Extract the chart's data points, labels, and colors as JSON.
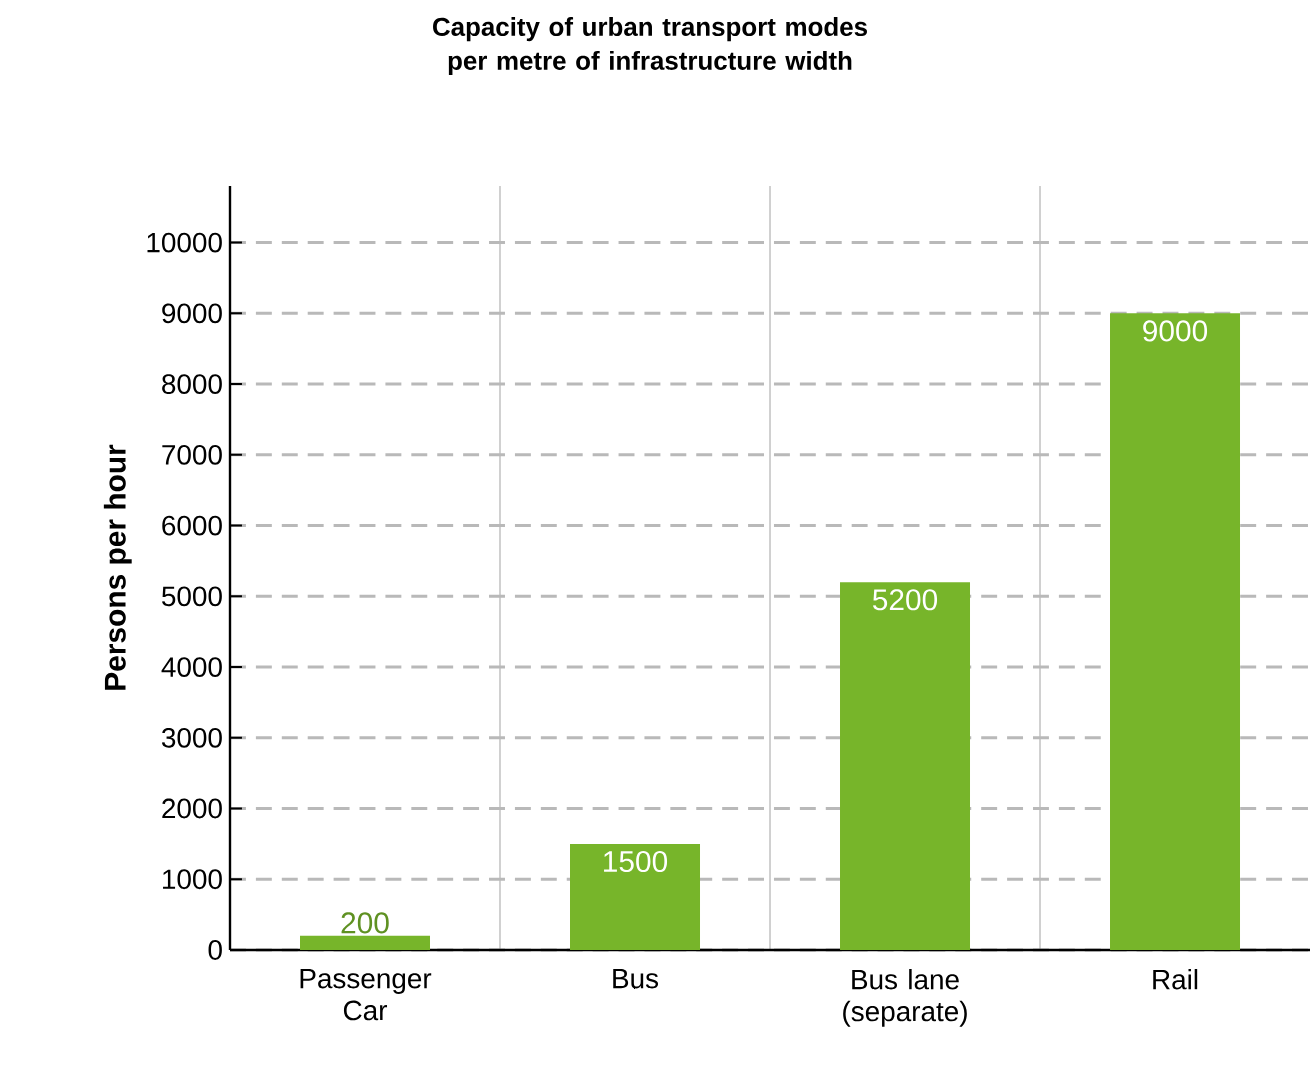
{
  "chart_data": {
    "type": "bar",
    "title": "Capacity of urban transport modes per metre of infrastructure width",
    "ylabel": "Persons per hour",
    "categories": [
      "Passenger Car",
      "Bus",
      "Bus lane (separate)",
      "Rail"
    ],
    "values": [
      200,
      1500,
      5200,
      9000
    ],
    "color": "#77b52a",
    "ylim": [
      0,
      10800
    ],
    "yticks": [
      0,
      1000,
      2000,
      3000,
      4000,
      5000,
      6000,
      7000,
      8000,
      9000,
      10000
    ],
    "grid": "y",
    "data_labels": true
  }
}
